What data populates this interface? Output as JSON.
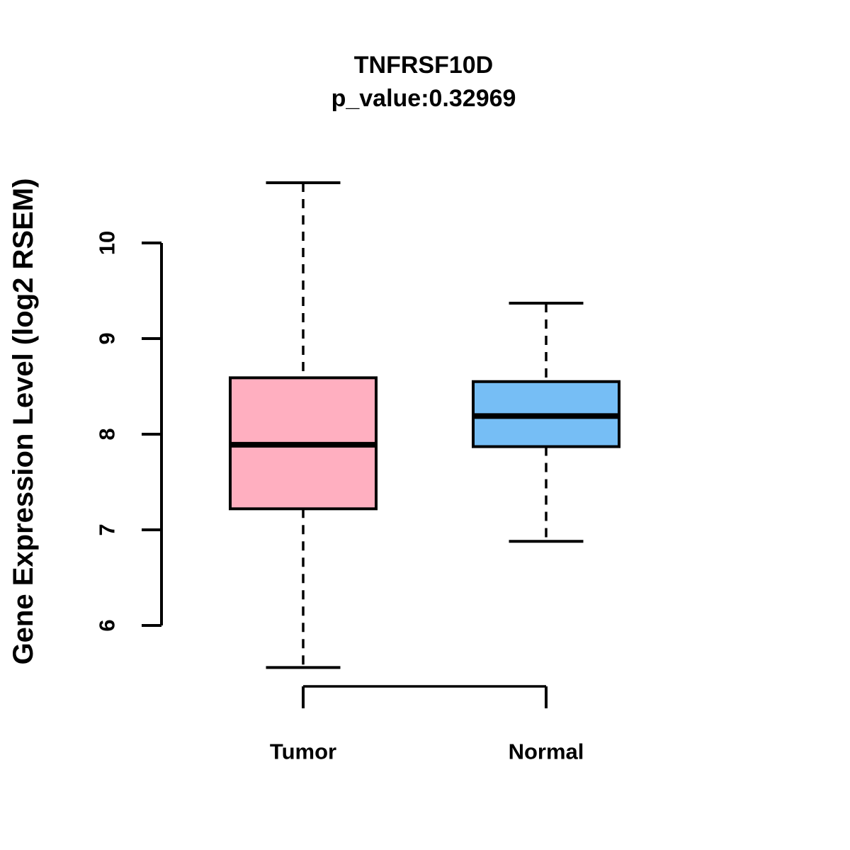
{
  "chart_data": {
    "type": "boxplot",
    "title": "TNFRSF10D",
    "subtitle": "p_value:0.32969",
    "p_value": "0.32969",
    "ylabel": "Gene Expression Level (log2 RSEM)",
    "yticks": [
      6,
      7,
      8,
      9,
      10
    ],
    "ylim": [
      5.4,
      10.9
    ],
    "grid": false,
    "legend": "none",
    "categories": [
      "Tumor",
      "Normal"
    ],
    "series": [
      {
        "name": "Tumor",
        "fill_color": "#FFAFC0",
        "whisker_low": 5.56,
        "q1": 7.22,
        "median": 7.89,
        "q3": 8.59,
        "whisker_high": 10.63
      },
      {
        "name": "Normal",
        "fill_color": "#76BEF5",
        "whisker_low": 6.88,
        "q1": 7.87,
        "median": 8.19,
        "q3": 8.55,
        "whisker_high": 9.37
      }
    ],
    "styles": {
      "stroke_color": "#000000",
      "median_color": "#000000",
      "background": "#FFFFFF",
      "whisker_style": "dashed"
    }
  }
}
